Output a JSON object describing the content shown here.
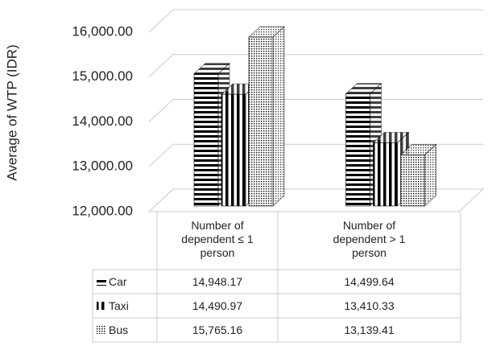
{
  "chart_data": {
    "type": "bar3d",
    "y_label": "Average of WTP (IDR)",
    "categories": [
      "Number of dependent  ≤ 1 person",
      "Number of dependent > 1 person"
    ],
    "series": [
      {
        "name": "Car",
        "color": "#000000",
        "values": [
          14948.17,
          14499.64
        ],
        "value_labels": [
          "14,948.17",
          "14,499.64"
        ]
      },
      {
        "name": "Taxi",
        "color": "#000000",
        "values": [
          14490.97,
          13410.33
        ],
        "value_labels": [
          "14,490.97",
          "13,410.33"
        ]
      },
      {
        "name": "Bus",
        "color": "#000000",
        "values": [
          15765.16,
          13139.41
        ],
        "value_labels": [
          "15,765.16",
          "13,139.41"
        ]
      }
    ],
    "ylim": [
      12000,
      16000
    ],
    "yticks": [
      {
        "value": 12000,
        "label": "12,000.00"
      },
      {
        "value": 13000,
        "label": "13,000.00"
      },
      {
        "value": 14000,
        "label": "14,000.00"
      },
      {
        "value": 15000,
        "label": "15,000.00"
      },
      {
        "value": 16000,
        "label": "16,000.00"
      }
    ],
    "grid": true,
    "legend": "table"
  }
}
